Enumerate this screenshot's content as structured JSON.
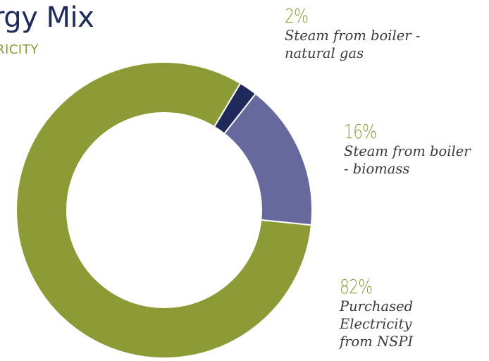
{
  "header": {
    "title": "rgy Mix",
    "subtitle": "RICITY"
  },
  "colors": {
    "olive": "#8e9a36",
    "slate": "#67699d",
    "navy": "#1f2a5a"
  },
  "chart_data": {
    "type": "pie",
    "donut": true,
    "categories": [
      "Steam from boiler - natural gas",
      "Steam from boiler - biomass",
      "Purchased Electricity from NSPI"
    ],
    "values": [
      2,
      16,
      82
    ],
    "unit": "%",
    "slices": [
      {
        "label": "Steam from boiler -\nnatural gas",
        "pct_label": "2%",
        "value": 2,
        "color": "#1f2a5a"
      },
      {
        "label": "Steam from boiler\n- biomass",
        "pct_label": "16%",
        "value": 16,
        "color": "#67699d"
      },
      {
        "label": "Purchased\nElectricity\nfrom NSPI",
        "pct_label": "82%",
        "value": 82,
        "color": "#8e9a36"
      }
    ]
  }
}
